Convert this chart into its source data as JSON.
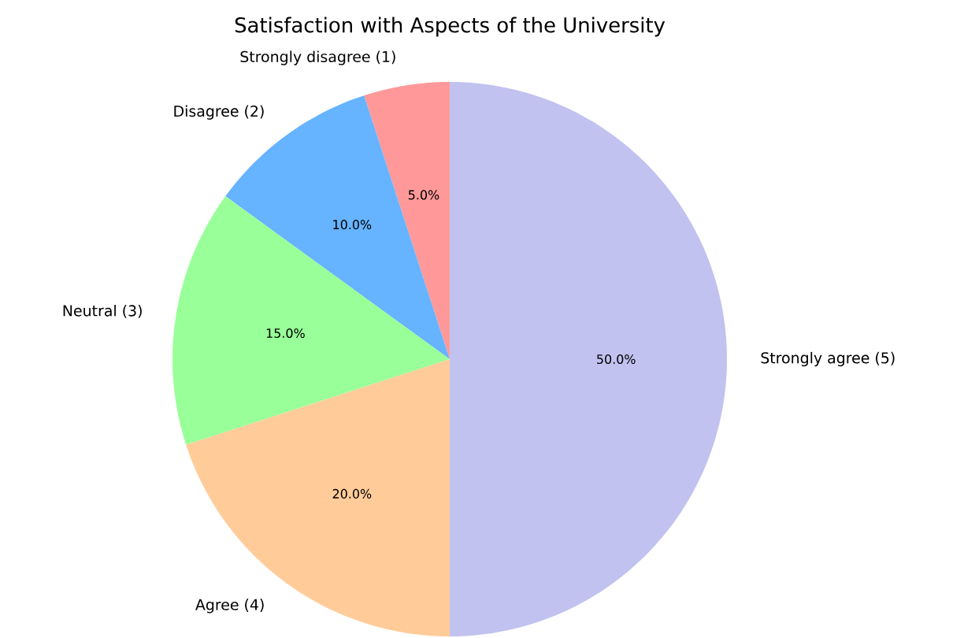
{
  "chart_data": {
    "type": "pie",
    "title": "Satisfaction with Aspects of the University",
    "categories": [
      "Strongly disagree (1)",
      "Disagree (2)",
      "Neutral (3)",
      "Agree (4)",
      "Strongly agree (5)"
    ],
    "values": [
      5,
      10,
      15,
      20,
      50
    ],
    "colors": [
      "#ff9999",
      "#66b3ff",
      "#99ff99",
      "#ffcc99",
      "#c2c2f0"
    ],
    "value_labels": [
      "5.0%",
      "10.0%",
      "15.0%",
      "20.0%",
      "50.0%"
    ]
  }
}
